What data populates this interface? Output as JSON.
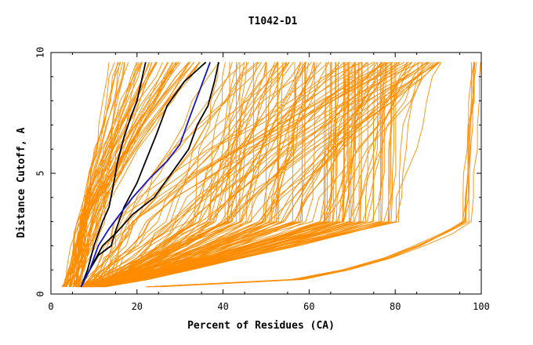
{
  "chart_data": {
    "type": "line",
    "title": "T1042-D1",
    "xlabel": "Percent of Residues (CA)",
    "ylabel": "Distance Cutoff, A",
    "xlim": [
      0,
      100
    ],
    "ylim": [
      0,
      10
    ],
    "x_ticks": [
      "0",
      "20",
      "40",
      "60",
      "80",
      "100"
    ],
    "x_tick_values": [
      0,
      20,
      40,
      60,
      80,
      100
    ],
    "y_ticks": [
      "0",
      "5",
      "10"
    ],
    "y_tick_values": [
      0,
      5,
      10
    ],
    "grid": false,
    "colors": {
      "orange": "#ff8c00",
      "black": "#000000",
      "blue": "#1414c8"
    },
    "bundles": [
      {
        "group": "steep",
        "color": "#ff8c00",
        "count": 48,
        "start_x": [
          2.5,
          6.5
        ],
        "x_at_3": [
          6,
          13
        ],
        "end_x": [
          13,
          35
        ],
        "start_y": 0.3,
        "end_y": 9.6
      },
      {
        "group": "fan",
        "color": "#ff8c00",
        "count": 140,
        "start_x": [
          6,
          13
        ],
        "x_at_3": [
          15,
          80
        ],
        "end_x": [
          38,
          92
        ],
        "start_y": 0.3,
        "end_y": 9.6
      },
      {
        "group": "flat",
        "color": "#ff8c00",
        "count": 7,
        "start_x": [
          22,
          26
        ],
        "x_at_3": [
          95,
          98
        ],
        "end_x": [
          97,
          100
        ],
        "start_y": 0.3,
        "end_y": 9.6
      }
    ],
    "series": [
      {
        "color": "#000000",
        "x": [
          7,
          8.5,
          10,
          12,
          13.5,
          14.5,
          15.5,
          17,
          18.5,
          20,
          21,
          22
        ],
        "y": [
          0.3,
          1,
          2,
          3,
          3.6,
          4.5,
          5.5,
          6.5,
          7.3,
          8,
          8.8,
          9.6
        ]
      },
      {
        "color": "#000000",
        "x": [
          7,
          9,
          11,
          14,
          15,
          17,
          20,
          22,
          24.5,
          27,
          31,
          36
        ],
        "y": [
          0.3,
          1,
          1.6,
          2,
          2.6,
          3.6,
          4.6,
          5.5,
          6.6,
          7.8,
          8.8,
          9.6
        ]
      },
      {
        "color": "#000000",
        "x": [
          7,
          9,
          12,
          15,
          19,
          24,
          28,
          32,
          34,
          36.5,
          38,
          39
        ],
        "y": [
          0.3,
          1,
          2,
          2.5,
          3.3,
          4,
          5,
          6,
          7,
          7.8,
          8.8,
          9.6
        ]
      },
      {
        "color": "#1414c8",
        "x": [
          7,
          9,
          11,
          13.5,
          16,
          19,
          23,
          27,
          30,
          32,
          34.5,
          37
        ],
        "y": [
          0.3,
          1,
          2,
          2.7,
          3.3,
          4,
          4.8,
          5.5,
          6.2,
          7.2,
          8.4,
          9.6
        ]
      }
    ]
  }
}
